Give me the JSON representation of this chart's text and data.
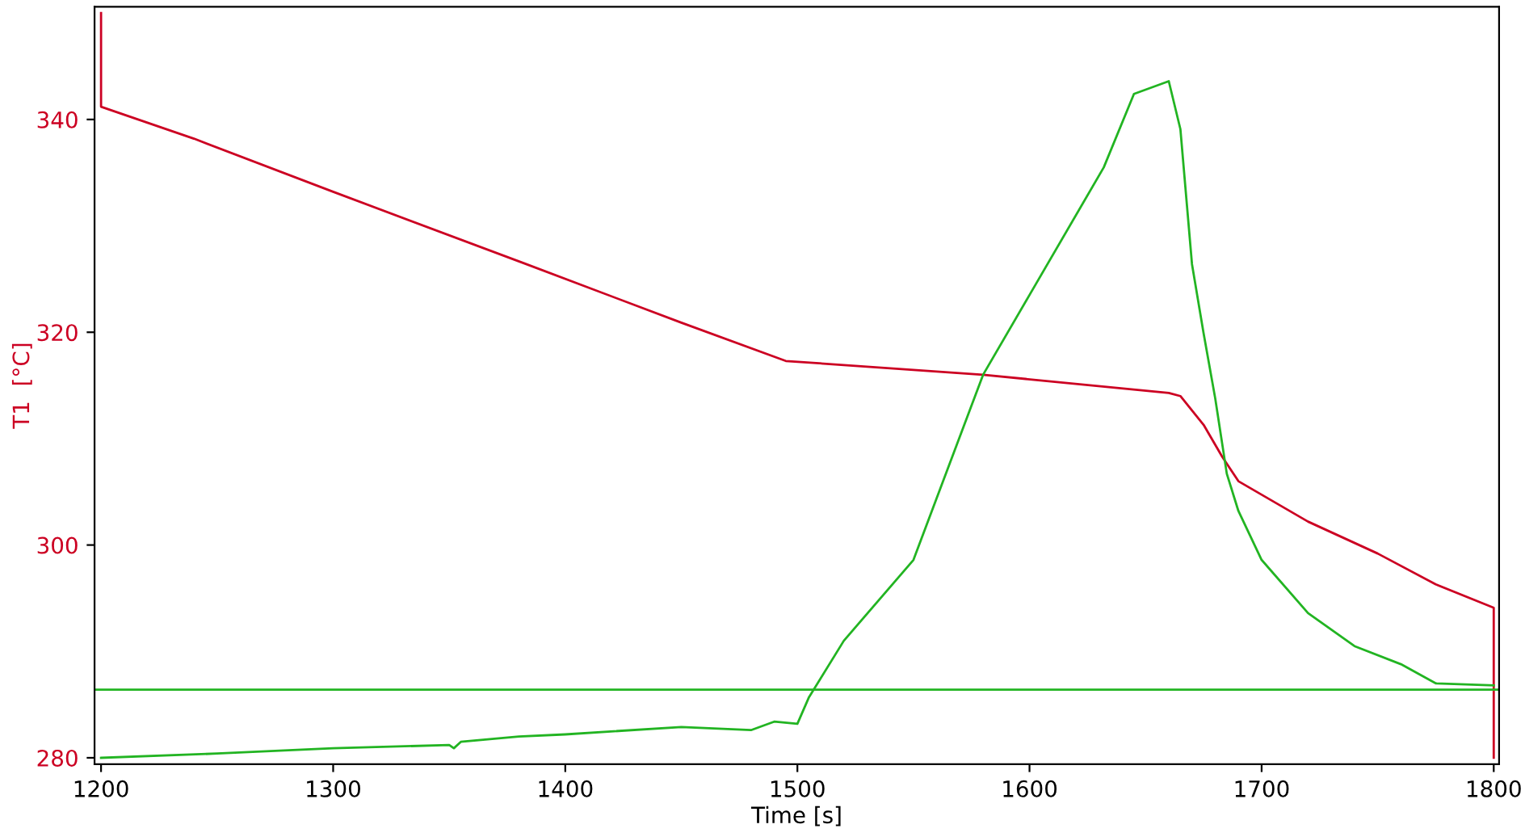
{
  "chart_data": {
    "type": "line",
    "xlabel": "Time [s]",
    "ylabel": "T1  [°C]",
    "xlim": [
      1197.2,
      1802.3
    ],
    "ylim": [
      279.4,
      350.6
    ],
    "xticks": [
      1200,
      1300,
      1400,
      1500,
      1600,
      1700,
      1800
    ],
    "yticks": [
      280,
      300,
      320,
      340
    ],
    "grid": false,
    "legend": false,
    "series": [
      {
        "color": "#cc0022",
        "x": [
          1200,
          1200,
          1240,
          1300,
          1382,
          1450,
          1495,
          1580,
          1660,
          1665,
          1675,
          1683,
          1690,
          1720,
          1750,
          1775,
          1800,
          1800
        ],
        "values": [
          350.0,
          341.2,
          338.2,
          333.2,
          326.5,
          320.9,
          317.3,
          316.0,
          314.3,
          314.0,
          311.3,
          308.3,
          306.0,
          302.2,
          299.2,
          296.3,
          294.1,
          280.0
        ]
      },
      {
        "color": "#22b422",
        "x": [
          1200,
          1250,
          1300,
          1350,
          1352,
          1355,
          1380,
          1400,
          1450,
          1480,
          1490,
          1500,
          1505,
          1520,
          1550,
          1580,
          1600,
          1632,
          1645,
          1660,
          1665,
          1670,
          1675,
          1680,
          1685,
          1690,
          1700,
          1720,
          1740,
          1760,
          1775,
          1800
        ],
        "values": [
          280.0,
          280.4,
          280.9,
          281.2,
          280.9,
          281.5,
          282.0,
          282.2,
          282.9,
          282.6,
          283.4,
          283.2,
          285.7,
          291.0,
          298.6,
          316.0,
          323.5,
          335.5,
          342.4,
          343.6,
          339.1,
          326.4,
          319.9,
          313.8,
          306.7,
          303.2,
          298.6,
          293.6,
          290.5,
          288.8,
          287.0,
          286.8
        ]
      }
    ],
    "ref_lines": [
      {
        "axis": "y",
        "value": 286.4,
        "color": "#22b422"
      }
    ]
  }
}
